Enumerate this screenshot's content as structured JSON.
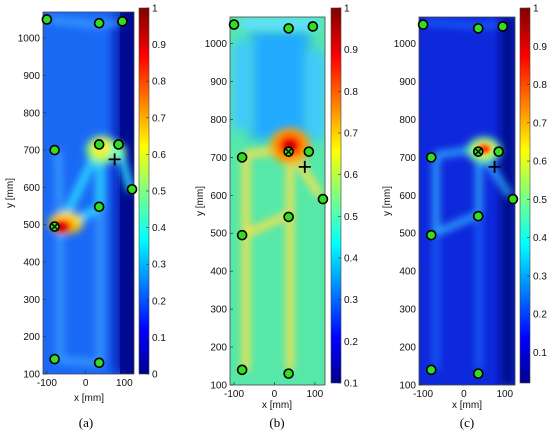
{
  "figure": {
    "colormap": "jet",
    "marker_fill": "#33dd22",
    "marker_edge": "#000000"
  },
  "chart_data": [
    {
      "type": "heatmap",
      "panel_label": "(a)",
      "xlabel": "x [mm]",
      "ylabel": "y [mm]",
      "xlim": [
        -110,
        125
      ],
      "ylim": [
        100,
        1070
      ],
      "xticks": [
        -100,
        0,
        100
      ],
      "yticks": [
        100,
        200,
        300,
        400,
        500,
        600,
        700,
        800,
        900,
        1000
      ],
      "colorbar": {
        "range": [
          0,
          1
        ],
        "ticks": [
          0,
          0.1,
          0.2,
          0.3,
          0.4,
          0.5,
          0.6,
          0.7,
          0.8,
          0.9,
          1
        ]
      },
      "sensors": [
        {
          "x": -100,
          "y": 1050
        },
        {
          "x": 35,
          "y": 1040
        },
        {
          "x": 95,
          "y": 1045
        },
        {
          "x": -80,
          "y": 700
        },
        {
          "x": 35,
          "y": 715
        },
        {
          "x": 85,
          "y": 715
        },
        {
          "x": 120,
          "y": 595
        },
        {
          "x": 35,
          "y": 548
        },
        {
          "x": -80,
          "y": 140
        },
        {
          "x": 35,
          "y": 130
        }
      ],
      "estimate": {
        "x": -80,
        "y": 495
      },
      "true_source": {
        "x": 75,
        "y": 675
      }
    },
    {
      "type": "heatmap",
      "panel_label": "(b)",
      "xlabel": "x [mm]",
      "ylabel": "y [mm]",
      "xlim": [
        -110,
        125
      ],
      "ylim": [
        100,
        1070
      ],
      "xticks": [
        -100,
        0,
        100
      ],
      "yticks": [
        100,
        200,
        300,
        400,
        500,
        600,
        700,
        800,
        900,
        1000
      ],
      "colorbar": {
        "range": [
          0.1,
          1
        ],
        "ticks": [
          0.1,
          0.2,
          0.3,
          0.4,
          0.5,
          0.6,
          0.7,
          0.8,
          0.9,
          1
        ]
      },
      "sensors": [
        {
          "x": -100,
          "y": 1050
        },
        {
          "x": 35,
          "y": 1040
        },
        {
          "x": 95,
          "y": 1045
        },
        {
          "x": -80,
          "y": 700
        },
        {
          "x": 85,
          "y": 715
        },
        {
          "x": 120,
          "y": 590
        },
        {
          "x": 35,
          "y": 543
        },
        {
          "x": -80,
          "y": 495
        },
        {
          "x": -80,
          "y": 140
        },
        {
          "x": 35,
          "y": 130
        }
      ],
      "estimate": {
        "x": 35,
        "y": 715
      },
      "true_source": {
        "x": 75,
        "y": 675
      }
    },
    {
      "type": "heatmap",
      "panel_label": "(c)",
      "xlabel": "x [mm]",
      "ylabel": "y [mm]",
      "xlim": [
        -110,
        125
      ],
      "ylim": [
        100,
        1070
      ],
      "xticks": [
        -100,
        0,
        100
      ],
      "yticks": [
        100,
        200,
        300,
        400,
        500,
        600,
        700,
        800,
        900,
        1000
      ],
      "colorbar": {
        "range": [
          0.02,
          1
        ],
        "ticks": [
          0.1,
          0.2,
          0.3,
          0.4,
          0.5,
          0.6,
          0.7,
          0.8,
          0.9,
          1
        ]
      },
      "sensors": [
        {
          "x": -100,
          "y": 1050
        },
        {
          "x": 35,
          "y": 1040
        },
        {
          "x": 95,
          "y": 1045
        },
        {
          "x": -80,
          "y": 700
        },
        {
          "x": 85,
          "y": 715
        },
        {
          "x": 120,
          "y": 590
        },
        {
          "x": 35,
          "y": 545
        },
        {
          "x": -80,
          "y": 495
        },
        {
          "x": -80,
          "y": 140
        },
        {
          "x": 35,
          "y": 130
        }
      ],
      "estimate": {
        "x": 35,
        "y": 715
      },
      "true_source": {
        "x": 75,
        "y": 675
      }
    }
  ]
}
